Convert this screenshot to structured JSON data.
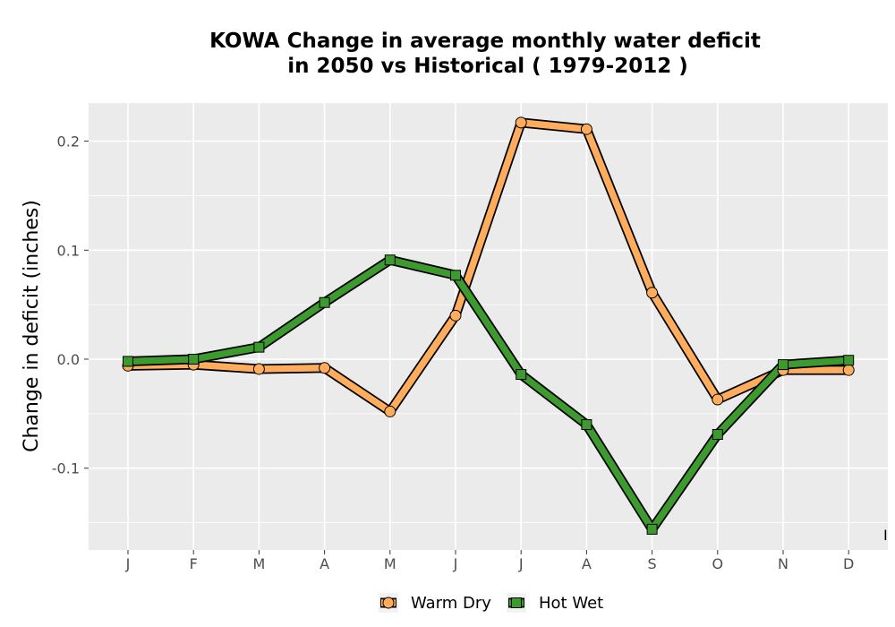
{
  "chart_data": {
    "type": "line",
    "title_lines": [
      "KOWA  Change in average monthly water deficit",
      "in 2050 vs Historical ( 1979-2012 )"
    ],
    "xlabel": "",
    "ylabel": "Change in deficit (inches)",
    "categories": [
      "J",
      "F",
      "M",
      "A",
      "M",
      "J",
      "J",
      "A",
      "S",
      "O",
      "N",
      "D"
    ],
    "y_ticks": [
      -0.1,
      0.0,
      0.1,
      0.2
    ],
    "y_tick_labels": [
      "-0.1",
      "0.0",
      "0.1",
      "0.2"
    ],
    "ylim": [
      -0.175,
      0.235
    ],
    "grid": true,
    "legend_position": "bottom",
    "stray_label": "I",
    "series": [
      {
        "name": "Warm Dry",
        "marker": "circle",
        "color": "#ffad5c",
        "values": [
          -0.006,
          -0.005,
          -0.009,
          -0.008,
          -0.048,
          0.04,
          0.217,
          0.211,
          0.061,
          -0.037,
          -0.01,
          -0.01
        ]
      },
      {
        "name": "Hot Wet",
        "marker": "square",
        "color": "#3d9a2e",
        "values": [
          -0.002,
          0.0,
          0.011,
          0.052,
          0.091,
          0.077,
          -0.014,
          -0.06,
          -0.156,
          -0.069,
          -0.005,
          -0.001
        ]
      }
    ]
  }
}
